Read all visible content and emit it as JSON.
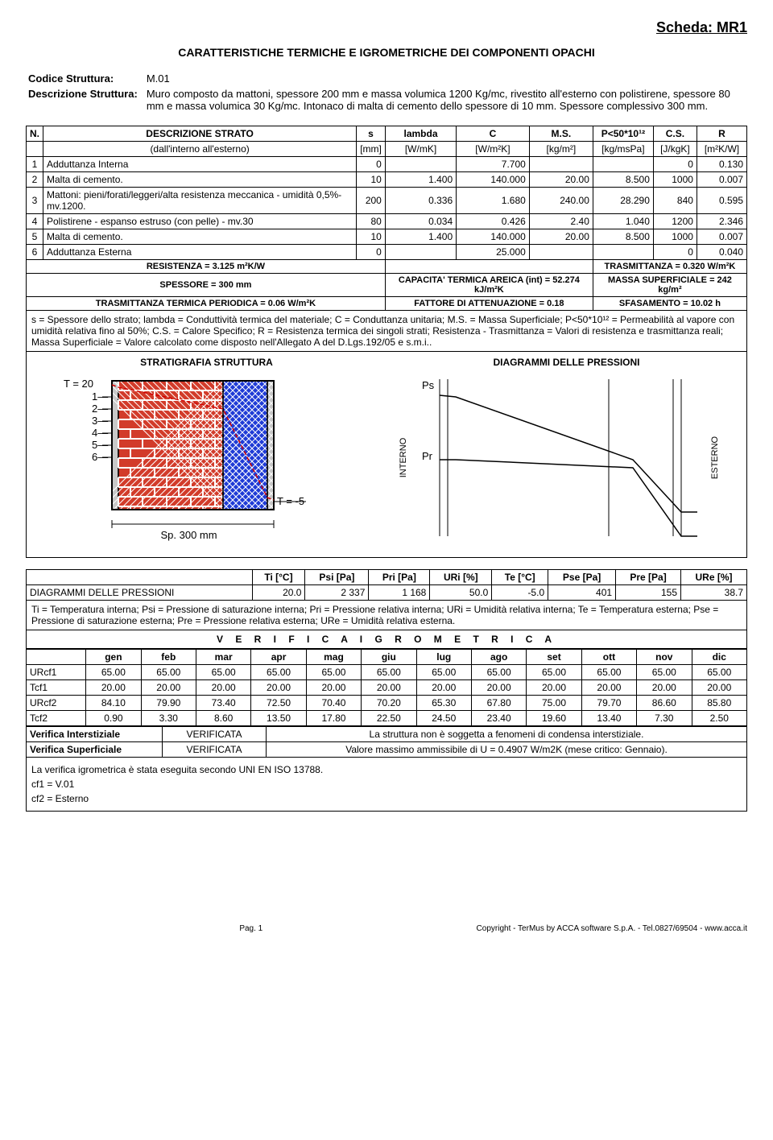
{
  "scheda": "Scheda: MR1",
  "title": "CARATTERISTICHE TERMICHE E IGROMETRICHE DEI COMPONENTI OPACHI",
  "header": {
    "codice_label": "Codice Struttura:",
    "codice": "M.01",
    "descr_label": "Descrizione Struttura:",
    "descr": "Muro composto da mattoni, spessore 200 mm e massa volumica 1200 Kg/mc, rivestito all'esterno con polistirene, spessore 80 mm e massa volumica 30 Kg/mc. Intonaco di malta di cemento dello spessore di 10 mm. Spessore complessivo 300 mm."
  },
  "strati": {
    "head1": [
      "N.",
      "DESCRIZIONE STRATO",
      "s",
      "lambda",
      "C",
      "M.S.",
      "P<50*10¹²",
      "C.S.",
      "R"
    ],
    "head2_label": "(dall'interno all'esterno)",
    "head2_units": [
      "[mm]",
      "[W/mK]",
      "[W/m²K]",
      "[kg/m²]",
      "[kg/msPa]",
      "[J/kgK]",
      "[m²K/W]"
    ],
    "rows": [
      {
        "n": "1",
        "d": "Adduttanza Interna",
        "s": "0",
        "l": "",
        "c": "7.700",
        "ms": "",
        "p": "",
        "cs": "0",
        "r": "0.130"
      },
      {
        "n": "2",
        "d": "Malta di cemento.",
        "s": "10",
        "l": "1.400",
        "c": "140.000",
        "ms": "20.00",
        "p": "8.500",
        "cs": "1000",
        "r": "0.007"
      },
      {
        "n": "3",
        "d": "Mattoni: pieni/forati/leggeri/alta resistenza meccanica - umidità 0,5%- mv.1200.",
        "s": "200",
        "l": "0.336",
        "c": "1.680",
        "ms": "240.00",
        "p": "28.290",
        "cs": "840",
        "r": "0.595"
      },
      {
        "n": "4",
        "d": "Polistirene - espanso estruso (con pelle)  - mv.30",
        "s": "80",
        "l": "0.034",
        "c": "0.426",
        "ms": "2.40",
        "p": "1.040",
        "cs": "1200",
        "r": "2.346"
      },
      {
        "n": "5",
        "d": "Malta di cemento.",
        "s": "10",
        "l": "1.400",
        "c": "140.000",
        "ms": "20.00",
        "p": "8.500",
        "cs": "1000",
        "r": "0.007"
      },
      {
        "n": "6",
        "d": "Adduttanza Esterna",
        "s": "0",
        "l": "",
        "c": "25.000",
        "ms": "",
        "p": "",
        "cs": "0",
        "r": "0.040"
      }
    ]
  },
  "summary": {
    "row1_left": "RESISTENZA = 3.125 m²K/W",
    "row1_right": "TRASMITTANZA = 0.320 W/m²K",
    "row2_left": "SPESSORE = 300 mm",
    "row2_mid": "CAPACITA' TERMICA AREICA (int) = 52.274 kJ/m²K",
    "row2_right": "MASSA SUPERFICIALE = 242 kg/m²",
    "row3_left": "TRASMITTANZA TERMICA PERIODICA = 0.06 W/m²K",
    "row3_mid": "FATTORE DI ATTENUAZIONE = 0.18",
    "row3_right": "SFASAMENTO = 10.02 h"
  },
  "legend": "s = Spessore dello strato; lambda = Conduttività termica del materiale; C = Conduttanza unitaria; M.S. = Massa Superficiale; P<50*10¹² = Permeabilità al vapore con umidità relativa fino al 50%; C.S. = Calore Specifico; R = Resistenza termica dei singoli strati; Resistenza - Trasmittanza = Valori di resistenza e trasmittanza reali; Massa Superficiale = Valore calcolato come disposto nell'Allegato A del D.Lgs.192/05 e s.m.i..",
  "diag": {
    "left_title": "STRATIGRAFIA STRUTTURA",
    "right_title": "DIAGRAMMI DELLE PRESSIONI",
    "t_hot": "T = 20",
    "t_cold": "T = -5",
    "sp_label": "Sp. 300 mm",
    "interno": "INTERNO",
    "esterno": "ESTERNO",
    "ps": "Ps",
    "pr": "Pr",
    "colors": {
      "plaster": "#c8c8c8",
      "brick": "#d23b2a",
      "mortar": "#ffffff",
      "poly": "#1f3bd6",
      "line_red": "#d00000",
      "line_black": "#000000"
    },
    "layers_nums": [
      "1",
      "2",
      "3",
      "4",
      "5",
      "6"
    ],
    "pressure_lines": {
      "ps": [
        [
          0,
          20
        ],
        [
          20,
          22
        ],
        [
          240,
          100
        ],
        [
          300,
          165
        ],
        [
          320,
          165
        ]
      ],
      "pr": [
        [
          0,
          100
        ],
        [
          20,
          100
        ],
        [
          240,
          110
        ],
        [
          300,
          195
        ],
        [
          320,
          195
        ]
      ]
    }
  },
  "press": {
    "head": [
      "Ti [°C]",
      "Psi [Pa]",
      "Pri [Pa]",
      "URi [%]",
      "Te [°C]",
      "Pse [Pa]",
      "Pre [Pa]",
      "URe [%]"
    ],
    "row_label": "DIAGRAMMI DELLE PRESSIONI",
    "row": [
      "20.0",
      "2 337",
      "1 168",
      "50.0",
      "-5.0",
      "401",
      "155",
      "38.7"
    ],
    "legend": "Ti = Temperatura interna; Psi = Pressione di saturazione interna; Pri = Pressione relativa interna; URi = Umidità relativa interna; Te = Temperatura esterna; Pse = Pressione di saturazione esterna; Pre = Pressione relativa esterna; URe = Umidità relativa esterna."
  },
  "igro": {
    "title": "V E R I F I C A    I G R O M E T R I C A",
    "months": [
      "gen",
      "feb",
      "mar",
      "apr",
      "mag",
      "giu",
      "lug",
      "ago",
      "set",
      "ott",
      "nov",
      "dic"
    ],
    "rows": [
      {
        "label": "URcf1",
        "v": [
          "65.00",
          "65.00",
          "65.00",
          "65.00",
          "65.00",
          "65.00",
          "65.00",
          "65.00",
          "65.00",
          "65.00",
          "65.00",
          "65.00"
        ]
      },
      {
        "label": "Tcf1",
        "v": [
          "20.00",
          "20.00",
          "20.00",
          "20.00",
          "20.00",
          "20.00",
          "20.00",
          "20.00",
          "20.00",
          "20.00",
          "20.00",
          "20.00"
        ]
      },
      {
        "label": "URcf2",
        "v": [
          "84.10",
          "79.90",
          "73.40",
          "72.50",
          "70.40",
          "70.20",
          "65.30",
          "67.80",
          "75.00",
          "79.70",
          "86.60",
          "85.80"
        ]
      },
      {
        "label": "Tcf2",
        "v": [
          "0.90",
          "3.30",
          "8.60",
          "13.50",
          "17.80",
          "22.50",
          "24.50",
          "23.40",
          "19.60",
          "13.40",
          "7.30",
          "2.50"
        ]
      }
    ],
    "res": [
      {
        "k": "Verifica Interstiziale",
        "v": "VERIFICATA",
        "note": "La struttura non è soggetta a fenomeni di condensa interstiziale."
      },
      {
        "k": "Verifica Superficiale",
        "v": "VERIFICATA",
        "note": "Valore massimo ammissibile di U = 0.4907 W/m2K (mese critico: Gennaio)."
      }
    ],
    "notes": [
      "La verifica igrometrica è stata eseguita secondo UNI EN ISO 13788.",
      "cf1 = V.01",
      "cf2 = Esterno"
    ]
  },
  "footer": {
    "page": "Pag. 1",
    "copyright": "Copyright - TerMus by ACCA software S.p.A. - Tel.0827/69504 - www.acca.it"
  }
}
